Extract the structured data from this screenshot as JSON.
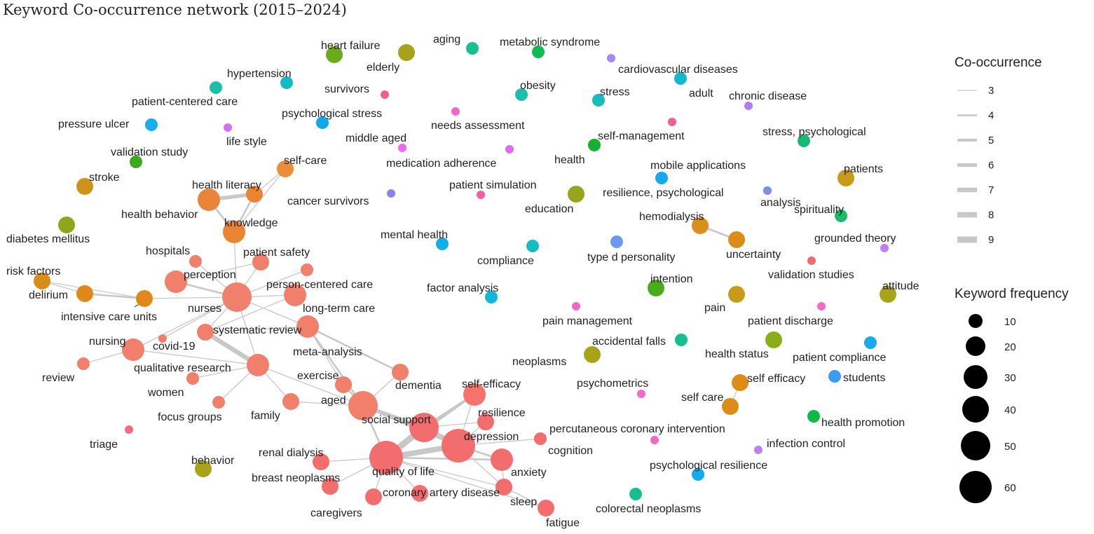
{
  "title": "Keyword Co-occurrence network (2015–2024)",
  "legend": {
    "edge_title": "Co-occurrence",
    "edge_levels": [
      "3",
      "4",
      "5",
      "6",
      "7",
      "8",
      "9"
    ],
    "node_title": "Keyword frequency",
    "node_levels": [
      "10",
      "20",
      "30",
      "40",
      "50",
      "60"
    ],
    "edge_color": "#c8c8c8",
    "node_color": "#000000"
  },
  "nodes": [
    {
      "label": "heart failure",
      "color": "#6aab1c",
      "size": "m"
    },
    {
      "label": "elderly",
      "color": "#a7a21a",
      "size": "m"
    },
    {
      "label": "aging",
      "color": "#1abf8d",
      "size": "s"
    },
    {
      "label": "metabolic syndrome",
      "color": "#10ba52",
      "size": "s"
    },
    {
      "label": "cardiovascular diseases",
      "color": "#a58af2",
      "size": "xs"
    },
    {
      "label": "hypertension",
      "color": "#13bcc4",
      "size": "s"
    },
    {
      "label": "survivors",
      "color": "#f25c8f",
      "size": "xs"
    },
    {
      "label": "obesity",
      "color": "#19bfa8",
      "size": "s"
    },
    {
      "label": "stress",
      "color": "#18bcbb",
      "size": "s"
    },
    {
      "label": "adult",
      "color": "#14b7cc",
      "size": "s"
    },
    {
      "label": "patient-centered care",
      "color": "#1abfa8",
      "size": "s"
    },
    {
      "label": "chronic disease",
      "color": "#b07cf0",
      "size": "xs"
    },
    {
      "label": "psychological stress",
      "color": "#12a9e9",
      "size": "s"
    },
    {
      "label": "needs assessment",
      "color": "#f565ce",
      "size": "xs"
    },
    {
      "label": "pressure ulcer",
      "color": "#16aef0",
      "size": "s"
    },
    {
      "label": "life style",
      "color": "#d56ef3",
      "size": "xs"
    },
    {
      "label": "self-management",
      "color": "#f06093",
      "size": "xs"
    },
    {
      "label": "stress, psychological",
      "color": "#17ba70",
      "size": "s"
    },
    {
      "label": "middle aged",
      "color": "#ea6ce6",
      "size": "xs"
    },
    {
      "label": "validation study",
      "color": "#3aab1c",
      "size": "s"
    },
    {
      "label": "health",
      "color": "#15b133",
      "size": "s"
    },
    {
      "label": "medication adherence",
      "color": "#e36be9",
      "size": "xs"
    },
    {
      "label": "mobile applications",
      "color": "#16a7ee",
      "size": "s"
    },
    {
      "label": "patients",
      "color": "#c99a18",
      "size": "m"
    },
    {
      "label": "stroke",
      "color": "#cc9319",
      "size": "m"
    },
    {
      "label": "self-care",
      "color": "#ea8f38",
      "size": "m"
    },
    {
      "label": "health literacy",
      "color": "#ea8433",
      "size": "m"
    },
    {
      "label": "patient simulation",
      "color": "#f35ea6",
      "size": "xs"
    },
    {
      "label": "resilience, psychological",
      "color": "#7d8ef3",
      "size": "xs"
    },
    {
      "label": "analysis",
      "color": "#7d8ef3",
      "size": "xs"
    },
    {
      "label": "education",
      "color": "#97a51b",
      "size": "m"
    },
    {
      "label": "cancer survivors",
      "color": "#8a84f0",
      "size": "xs"
    },
    {
      "label": "health behavior",
      "color": "#ea8438",
      "size": "l"
    },
    {
      "label": "spirituality",
      "color": "#18bc6a",
      "size": "s"
    },
    {
      "label": "hemodialysis",
      "color": "#db8e18",
      "size": "m"
    },
    {
      "label": "diabetes mellitus",
      "color": "#90a51b",
      "size": "m"
    },
    {
      "label": "knowledge",
      "color": "#ea8433",
      "size": "l"
    },
    {
      "label": "grounded theory",
      "color": "#c07ff1",
      "size": "xs"
    },
    {
      "label": "mental health",
      "color": "#13aee6",
      "size": "s"
    },
    {
      "label": "compliance",
      "color": "#13bbc3",
      "size": "s"
    },
    {
      "label": "type d personality",
      "color": "#6c98f1",
      "size": "s"
    },
    {
      "label": "uncertainty",
      "color": "#dc8d18",
      "size": "m"
    },
    {
      "label": "hospitals",
      "color": "#f0806c",
      "size": "s"
    },
    {
      "label": "patient safety",
      "color": "#f0806c",
      "size": "m"
    },
    {
      "label": "risk factors",
      "color": "#d78d18",
      "size": "m"
    },
    {
      "label": "perception",
      "color": "#f0806c",
      "size": "l"
    },
    {
      "label": "person-centered care",
      "color": "#f0806c",
      "size": "s"
    },
    {
      "label": "validation studies",
      "color": "#f06b6b",
      "size": "xs"
    },
    {
      "label": "delirium",
      "color": "#e0891a",
      "size": "m"
    },
    {
      "label": "intention",
      "color": "#4bac1a",
      "size": "m"
    },
    {
      "label": "attitude",
      "color": "#a8a319",
      "size": "m"
    },
    {
      "label": "factor analysis",
      "color": "#13b6d9",
      "size": "s"
    },
    {
      "label": "intensive care units",
      "color": "#e0891a",
      "size": "m"
    },
    {
      "label": "nurses",
      "color": "#f0806c",
      "size": "xl"
    },
    {
      "label": "long-term care",
      "color": "#f0806c",
      "size": "l"
    },
    {
      "label": "pain",
      "color": "#c99a18",
      "size": "m"
    },
    {
      "label": "pain management",
      "color": "#f266d0",
      "size": "xs"
    },
    {
      "label": "patient discharge",
      "color": "#f567c8",
      "size": "xs"
    },
    {
      "label": "systematic review",
      "color": "#f0806c",
      "size": "m"
    },
    {
      "label": "accidental falls",
      "color": "#17bf90",
      "size": "s"
    },
    {
      "label": "nursing",
      "color": "#f0806c",
      "size": "l"
    },
    {
      "label": "covid-19",
      "color": "#f0806c",
      "size": "xs"
    },
    {
      "label": "health status",
      "color": "#8aae1a",
      "size": "m"
    },
    {
      "label": "patient compliance",
      "color": "#19a9ec",
      "size": "s"
    },
    {
      "label": "meta-analysis",
      "color": "#f0806c",
      "size": "l"
    },
    {
      "label": "review",
      "color": "#f0806c",
      "size": "s"
    },
    {
      "label": "qualitative research",
      "color": "#f0806c",
      "size": "l"
    },
    {
      "label": "neoplasms",
      "color": "#a8a319",
      "size": "m"
    },
    {
      "label": "dementia",
      "color": "#f0806c",
      "size": "m"
    },
    {
      "label": "exercise",
      "color": "#f0806c",
      "size": "m"
    },
    {
      "label": "self-efficacy",
      "color": "#f4736d",
      "size": "l"
    },
    {
      "label": "psychometrics",
      "color": "#f468c8",
      "size": "xs"
    },
    {
      "label": "self efficacy",
      "color": "#dc8d18",
      "size": "m"
    },
    {
      "label": "students",
      "color": "#3d9bf1",
      "size": "s"
    },
    {
      "label": "women",
      "color": "#f0806c",
      "size": "s"
    },
    {
      "label": "aged",
      "color": "#f0806c",
      "size": "xl"
    },
    {
      "label": "self care",
      "color": "#dc8d18",
      "size": "m"
    },
    {
      "label": "family",
      "color": "#f0806c",
      "size": "m"
    },
    {
      "label": "focus groups",
      "color": "#f0806c",
      "size": "s"
    },
    {
      "label": "resilience",
      "color": "#f26d6d",
      "size": "m"
    },
    {
      "label": "health promotion",
      "color": "#10b845",
      "size": "s"
    },
    {
      "label": "social support",
      "color": "#f26d6d",
      "size": "xl"
    },
    {
      "label": "percutaneous coronary intervention",
      "color": "#f267c4",
      "size": "xs"
    },
    {
      "label": "triage",
      "color": "#f26b80",
      "size": "xs"
    },
    {
      "label": "depression",
      "color": "#f26d6d",
      "size": "xxl"
    },
    {
      "label": "cognition",
      "color": "#f26d6d",
      "size": "s"
    },
    {
      "label": "infection control",
      "color": "#c07ff1",
      "size": "xs"
    },
    {
      "label": "renal dialysis",
      "color": "#f26d6d",
      "size": "m"
    },
    {
      "label": "behavior",
      "color": "#a8a319",
      "size": "m"
    },
    {
      "label": "quality of life",
      "color": "#f26d6d",
      "size": "xxl"
    },
    {
      "label": "anxiety",
      "color": "#f26d6d",
      "size": "l"
    },
    {
      "label": "psychological resilience",
      "color": "#15aaea",
      "size": "s"
    },
    {
      "label": "breast neoplasms",
      "color": "#f26d6d",
      "size": "m"
    },
    {
      "label": "coronary artery disease",
      "color": "#f26d6d",
      "size": "m"
    },
    {
      "label": "sleep",
      "color": "#f26d6d",
      "size": "m"
    },
    {
      "label": "caregivers",
      "color": "#f26d6d",
      "size": "m"
    },
    {
      "label": "colorectal neoplasms",
      "color": "#17bf90",
      "size": "s"
    },
    {
      "label": "fatigue",
      "color": "#f26d6d",
      "size": "m"
    }
  ],
  "edges": [
    [
      "health literacy",
      "self-care",
      3
    ],
    [
      "health literacy",
      "health behavior",
      6
    ],
    [
      "health literacy",
      "knowledge",
      4
    ],
    [
      "health behavior",
      "knowledge",
      4
    ],
    [
      "knowledge",
      "nurses",
      3
    ],
    [
      "self-care",
      "knowledge",
      3
    ],
    [
      "risk factors",
      "delirium",
      3
    ],
    [
      "delirium",
      "intensive care units",
      4
    ],
    [
      "risk factors",
      "intensive care units",
      3
    ],
    [
      "intensive care units",
      "nurses",
      3
    ],
    [
      "nurses",
      "hospitals",
      3
    ],
    [
      "nurses",
      "patient safety",
      3
    ],
    [
      "nurses",
      "perception",
      4
    ],
    [
      "nurses",
      "person-centered care",
      3
    ],
    [
      "nurses",
      "long-term care",
      3
    ],
    [
      "nurses",
      "systematic review",
      3
    ],
    [
      "nurses",
      "qualitative research",
      3
    ],
    [
      "nurses",
      "nursing",
      3
    ],
    [
      "nurses",
      "covid-19",
      3
    ],
    [
      "nurses",
      "meta-analysis",
      3
    ],
    [
      "perception",
      "patient safety",
      3
    ],
    [
      "systematic review",
      "qualitative research",
      7
    ],
    [
      "systematic review",
      "meta-analysis",
      3
    ],
    [
      "systematic review",
      "long-term care",
      3
    ],
    [
      "nursing",
      "review",
      3
    ],
    [
      "nursing",
      "qualitative research",
      3
    ],
    [
      "qualitative research",
      "women",
      3
    ],
    [
      "qualitative research",
      "focus groups",
      3
    ],
    [
      "qualitative research",
      "family",
      3
    ],
    [
      "qualitative research",
      "aged",
      3
    ],
    [
      "meta-analysis",
      "aged",
      4
    ],
    [
      "meta-analysis",
      "dementia",
      4
    ],
    [
      "meta-analysis",
      "exercise",
      3
    ],
    [
      "exercise",
      "aged",
      4
    ],
    [
      "aged",
      "dementia",
      3
    ],
    [
      "aged",
      "family",
      3
    ],
    [
      "aged",
      "social support",
      6
    ],
    [
      "aged",
      "quality of life",
      4
    ],
    [
      "aged",
      "depression",
      5
    ],
    [
      "self-efficacy",
      "social support",
      5
    ],
    [
      "self-efficacy",
      "quality of life",
      4
    ],
    [
      "self-efficacy",
      "depression",
      3
    ],
    [
      "social support",
      "quality of life",
      9
    ],
    [
      "social support",
      "depression",
      7
    ],
    [
      "social support",
      "resilience",
      3
    ],
    [
      "depression",
      "quality of life",
      8
    ],
    [
      "depression",
      "anxiety",
      4
    ],
    [
      "depression",
      "resilience",
      3
    ],
    [
      "depression",
      "cognition",
      3
    ],
    [
      "depression",
      "sleep",
      3
    ],
    [
      "quality of life",
      "renal dialysis",
      3
    ],
    [
      "quality of life",
      "breast neoplasms",
      3
    ],
    [
      "quality of life",
      "caregivers",
      3
    ],
    [
      "quality of life",
      "coronary artery disease",
      3
    ],
    [
      "quality of life",
      "anxiety",
      4
    ],
    [
      "quality of life",
      "sleep",
      3
    ],
    [
      "quality of life",
      "fatigue",
      3
    ],
    [
      "anxiety",
      "sleep",
      3
    ],
    [
      "sleep",
      "fatigue",
      3
    ],
    [
      "hemodialysis",
      "uncertainty",
      4
    ],
    [
      "self efficacy",
      "self care",
      3
    ]
  ]
}
